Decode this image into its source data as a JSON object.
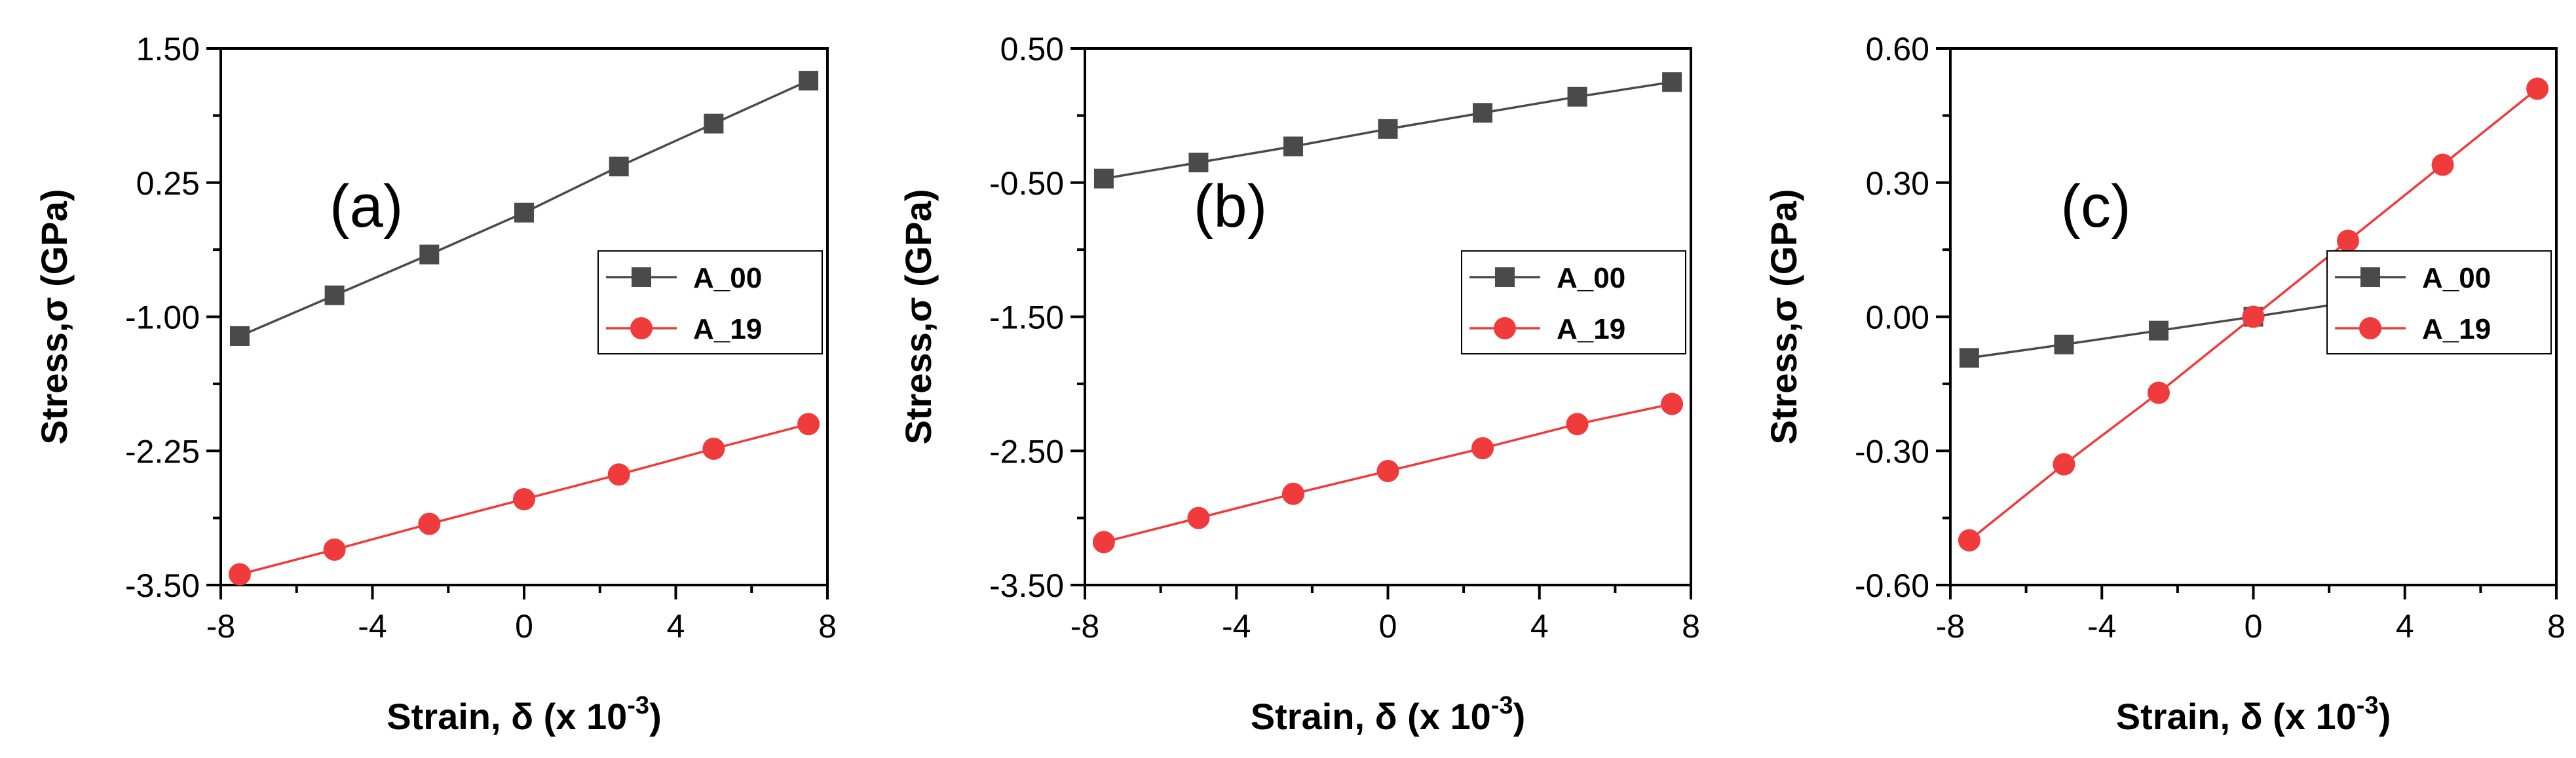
{
  "colors": {
    "A_00": "#4a4a4a",
    "A_19": "#ef3b3b"
  },
  "chart_data": [
    {
      "type": "line",
      "panel_label": "(a)",
      "xlabel": "Strain, δ (x 10",
      "xlabel_exp": "-3",
      "xlabel_close": ")",
      "ylabel": "Stress,σ (GPa)",
      "xlim": [
        -8,
        8
      ],
      "ylim": [
        -3.5,
        1.5
      ],
      "xticks": [
        "-8",
        "-4",
        "0",
        "4",
        "8"
      ],
      "yticks": [
        "-3.50",
        "-2.25",
        "-1.00",
        "0.25",
        "1.50"
      ],
      "x": [
        -7.5,
        -5,
        -2.5,
        0,
        2.5,
        5,
        7.5
      ],
      "series": [
        {
          "name": "A_00",
          "marker": "square",
          "values": [
            -1.18,
            -0.8,
            -0.42,
            -0.03,
            0.4,
            0.8,
            1.2
          ]
        },
        {
          "name": "A_19",
          "marker": "circle",
          "values": [
            -3.4,
            -3.17,
            -2.93,
            -2.7,
            -2.47,
            -2.23,
            -2.0
          ]
        }
      ],
      "legend": "right-middle"
    },
    {
      "type": "line",
      "panel_label": "(b)",
      "xlabel": "Strain, δ (x 10",
      "xlabel_exp": "-3",
      "xlabel_close": ")",
      "ylabel": "Stress,σ (GPa)",
      "xlim": [
        -8,
        8
      ],
      "ylim": [
        -3.5,
        0.5
      ],
      "xticks": [
        "-8",
        "-4",
        "0",
        "4",
        "8"
      ],
      "yticks": [
        "-3.50",
        "-2.50",
        "-1.50",
        "-0.50",
        "0.50"
      ],
      "x": [
        -7.5,
        -5,
        -2.5,
        0,
        2.5,
        5,
        7.5
      ],
      "series": [
        {
          "name": "A_00",
          "marker": "square",
          "values": [
            -0.47,
            -0.35,
            -0.23,
            -0.1,
            0.02,
            0.14,
            0.25
          ]
        },
        {
          "name": "A_19",
          "marker": "circle",
          "values": [
            -3.18,
            -3.0,
            -2.82,
            -2.65,
            -2.48,
            -2.3,
            -2.15
          ]
        }
      ],
      "legend": "right-middle"
    },
    {
      "type": "line",
      "panel_label": "(c)",
      "xlabel": "Strain, δ (x 10",
      "xlabel_exp": "-3",
      "xlabel_close": ")",
      "ylabel": "Stress,σ (GPa)",
      "xlim": [
        -8,
        8
      ],
      "ylim": [
        -0.6,
        0.6
      ],
      "xticks": [
        "-8",
        "-4",
        "0",
        "4",
        "8"
      ],
      "yticks": [
        "-0.60",
        "-0.30",
        "0.00",
        "0.30",
        "0.60"
      ],
      "x": [
        -7.5,
        -5,
        -2.5,
        0,
        2.5,
        5,
        7.5
      ],
      "series": [
        {
          "name": "A_00",
          "marker": "square",
          "values": [
            -0.092,
            -0.062,
            -0.031,
            0.0,
            0.032,
            0.063,
            0.096
          ]
        },
        {
          "name": "A_19",
          "marker": "circle",
          "values": [
            -0.5,
            -0.33,
            -0.17,
            0.0,
            0.17,
            0.34,
            0.51
          ]
        }
      ],
      "legend": "right-middle"
    }
  ]
}
